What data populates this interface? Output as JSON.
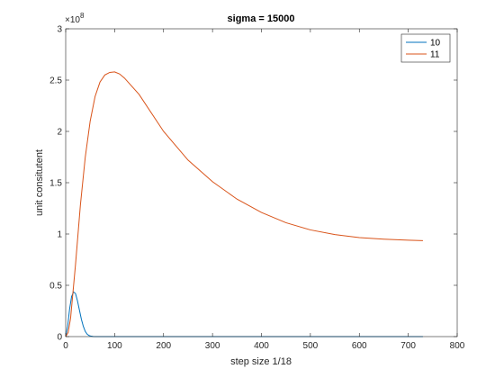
{
  "chart_data": {
    "type": "line",
    "title": "sigma = 15000",
    "xlabel": "step size 1/18",
    "ylabel": "unit consitutent",
    "xlim": [
      0,
      800
    ],
    "ylim": [
      0,
      300000000
    ],
    "x_ticks": [
      0,
      100,
      200,
      300,
      400,
      500,
      600,
      700,
      800
    ],
    "y_ticks": [
      0,
      50000000,
      100000000,
      150000000,
      200000000,
      250000000,
      300000000
    ],
    "x_tick_labels": [
      "0",
      "100",
      "200",
      "300",
      "400",
      "500",
      "600",
      "700",
      "800"
    ],
    "y_tick_labels": [
      "0",
      "0.5",
      "1",
      "1.5",
      "2",
      "2.5",
      "3"
    ],
    "y_exponent": {
      "base": "×10",
      "power": "8"
    },
    "grid": false,
    "legend_position": "top-right",
    "series": [
      {
        "name": "10",
        "color": "#0072BD",
        "x": [
          0,
          4,
          8,
          12,
          16,
          20,
          24,
          28,
          32,
          36,
          40,
          44,
          48,
          52,
          56,
          60,
          70,
          100,
          200,
          400,
          600,
          730
        ],
        "y": [
          0,
          10000000,
          27000000,
          39000000,
          43500000,
          42000000,
          35000000,
          26000000,
          17000000,
          10000000,
          5000000,
          2300000,
          1000000,
          400000,
          150000,
          50000,
          0,
          0,
          0,
          0,
          0,
          0
        ]
      },
      {
        "name": "11",
        "color": "#D95319",
        "x": [
          0,
          5,
          10,
          20,
          30,
          40,
          50,
          60,
          70,
          80,
          90,
          100,
          110,
          120,
          150,
          200,
          250,
          300,
          350,
          400,
          450,
          500,
          550,
          600,
          650,
          700,
          730
        ],
        "y": [
          0,
          4000000,
          18000000,
          70000000,
          128000000,
          175000000,
          210000000,
          234000000,
          248000000,
          255000000,
          257500000,
          258000000,
          256000000,
          252000000,
          236000000,
          200000000,
          172000000,
          151000000,
          134000000,
          121000000,
          111000000,
          104000000,
          99500000,
          96500000,
          95000000,
          94000000,
          93500000
        ]
      }
    ]
  }
}
